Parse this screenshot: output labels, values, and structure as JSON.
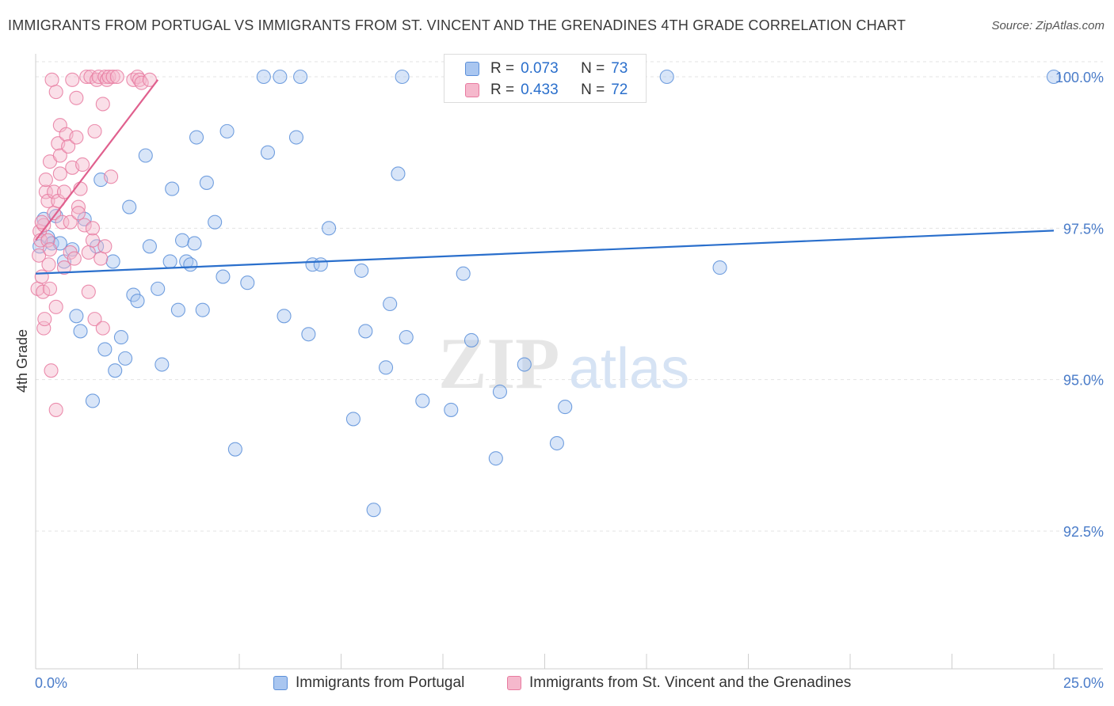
{
  "title": "IMMIGRANTS FROM PORTUGAL VS IMMIGRANTS FROM ST. VINCENT AND THE GRENADINES 4TH GRADE CORRELATION CHART",
  "source": "Source: ZipAtlas.com",
  "watermark": {
    "zip": "ZIP",
    "atlas": "atlas"
  },
  "colors": {
    "blue": "#5b8fd9",
    "blue_fill": "#a9c6f0",
    "blue_line": "#2a6fcc",
    "pink": "#e87aa0",
    "pink_fill": "#f5b8cc",
    "pink_line": "#e0608e",
    "axis_text": "#4a7cc9"
  },
  "legend_box": {
    "r_label": "R =",
    "n_label": "N =",
    "rows": [
      {
        "r": "0.073",
        "n": "73"
      },
      {
        "r": "0.433",
        "n": "72"
      }
    ]
  },
  "chart_data": {
    "type": "scatter",
    "title": "IMMIGRANTS FROM PORTUGAL VS IMMIGRANTS FROM ST. VINCENT AND THE GRENADINES 4TH GRADE CORRELATION CHART",
    "xlabel": "",
    "ylabel": "4th Grade",
    "x_tick_labels": [
      "0.0%",
      "25.0%"
    ],
    "y_tick_labels": [
      "100.0%",
      "97.5%",
      "95.0%",
      "92.5%"
    ],
    "y_ticks": [
      100.0,
      97.5,
      95.0,
      92.5
    ],
    "xlim": [
      0,
      25
    ],
    "ylim": [
      90.0,
      100.25
    ],
    "grid": true,
    "legend_position": "bottom",
    "series": [
      {
        "name": "Immigrants from Portugal",
        "color": "#5b8fd9",
        "trend": {
          "x0": 0.0,
          "y0": 96.75,
          "x1": 25.0,
          "y1": 97.46
        },
        "points": [
          [
            0.1,
            97.2
          ],
          [
            0.2,
            97.65
          ],
          [
            0.3,
            97.35
          ],
          [
            0.4,
            97.25
          ],
          [
            0.5,
            97.7
          ],
          [
            0.6,
            97.25
          ],
          [
            0.7,
            96.95
          ],
          [
            0.9,
            97.15
          ],
          [
            1.0,
            96.05
          ],
          [
            1.1,
            95.8
          ],
          [
            1.2,
            97.65
          ],
          [
            1.4,
            94.65
          ],
          [
            1.5,
            97.2
          ],
          [
            1.6,
            98.3
          ],
          [
            1.7,
            95.5
          ],
          [
            1.9,
            96.95
          ],
          [
            1.95,
            95.15
          ],
          [
            2.1,
            95.7
          ],
          [
            2.2,
            95.35
          ],
          [
            2.3,
            97.85
          ],
          [
            2.4,
            96.4
          ],
          [
            2.5,
            96.3
          ],
          [
            2.7,
            98.7
          ],
          [
            2.8,
            97.2
          ],
          [
            3.0,
            96.5
          ],
          [
            3.1,
            95.25
          ],
          [
            3.3,
            96.95
          ],
          [
            3.35,
            98.15
          ],
          [
            3.5,
            96.15
          ],
          [
            3.6,
            97.3
          ],
          [
            3.7,
            96.95
          ],
          [
            3.9,
            97.25
          ],
          [
            3.95,
            99.0
          ],
          [
            4.1,
            96.15
          ],
          [
            4.2,
            98.25
          ],
          [
            4.4,
            97.6
          ],
          [
            4.6,
            96.7
          ],
          [
            4.7,
            99.1
          ],
          [
            4.9,
            93.85
          ],
          [
            5.2,
            96.6
          ],
          [
            5.6,
            100.0
          ],
          [
            5.7,
            98.75
          ],
          [
            6.0,
            100.0
          ],
          [
            6.1,
            96.05
          ],
          [
            6.4,
            99.0
          ],
          [
            6.5,
            100.0
          ],
          [
            6.7,
            95.75
          ],
          [
            6.8,
            96.9
          ],
          [
            7.0,
            96.9
          ],
          [
            7.2,
            97.5
          ],
          [
            7.8,
            94.35
          ],
          [
            8.0,
            96.8
          ],
          [
            8.1,
            95.8
          ],
          [
            8.3,
            92.85
          ],
          [
            8.6,
            95.2
          ],
          [
            8.7,
            96.25
          ],
          [
            8.9,
            98.4
          ],
          [
            9.0,
            100.0
          ],
          [
            9.1,
            95.7
          ],
          [
            9.5,
            94.65
          ],
          [
            10.2,
            94.5
          ],
          [
            10.5,
            96.75
          ],
          [
            10.7,
            95.65
          ],
          [
            11.3,
            93.7
          ],
          [
            11.4,
            94.8
          ],
          [
            12.0,
            95.25
          ],
          [
            13.0,
            94.55
          ],
          [
            12.8,
            93.95
          ],
          [
            14.1,
            100.0
          ],
          [
            15.5,
            100.0
          ],
          [
            16.8,
            96.85
          ],
          [
            25.0,
            100.0
          ],
          [
            3.8,
            96.9
          ]
        ]
      },
      {
        "name": "Immigrants from St. Vincent and the Grenadines",
        "color": "#e87aa0",
        "trend": {
          "x0": 0.0,
          "y0": 97.3,
          "x1": 3.0,
          "y1": 99.95
        },
        "points": [
          [
            0.05,
            96.5
          ],
          [
            0.08,
            97.05
          ],
          [
            0.1,
            97.45
          ],
          [
            0.12,
            97.3
          ],
          [
            0.15,
            96.7
          ],
          [
            0.18,
            96.45
          ],
          [
            0.2,
            97.55
          ],
          [
            0.2,
            95.85
          ],
          [
            0.22,
            96.0
          ],
          [
            0.25,
            98.1
          ],
          [
            0.25,
            98.3
          ],
          [
            0.3,
            97.95
          ],
          [
            0.3,
            97.3
          ],
          [
            0.32,
            96.9
          ],
          [
            0.35,
            96.5
          ],
          [
            0.35,
            98.6
          ],
          [
            0.38,
            95.15
          ],
          [
            0.4,
            99.95
          ],
          [
            0.45,
            97.75
          ],
          [
            0.45,
            98.1
          ],
          [
            0.5,
            96.2
          ],
          [
            0.5,
            94.5
          ],
          [
            0.5,
            99.75
          ],
          [
            0.55,
            98.9
          ],
          [
            0.55,
            97.95
          ],
          [
            0.6,
            99.2
          ],
          [
            0.6,
            98.4
          ],
          [
            0.6,
            98.7
          ],
          [
            0.65,
            97.6
          ],
          [
            0.7,
            98.1
          ],
          [
            0.7,
            96.85
          ],
          [
            0.75,
            99.05
          ],
          [
            0.8,
            98.85
          ],
          [
            0.85,
            97.1
          ],
          [
            0.85,
            97.6
          ],
          [
            0.9,
            99.95
          ],
          [
            0.9,
            98.5
          ],
          [
            0.95,
            97.0
          ],
          [
            1.0,
            99.0
          ],
          [
            1.0,
            99.65
          ],
          [
            1.05,
            97.85
          ],
          [
            1.05,
            97.75
          ],
          [
            1.1,
            98.15
          ],
          [
            1.15,
            98.55
          ],
          [
            1.2,
            97.55
          ],
          [
            1.25,
            100.0
          ],
          [
            1.3,
            96.45
          ],
          [
            1.3,
            97.1
          ],
          [
            1.35,
            100.0
          ],
          [
            1.4,
            97.3
          ],
          [
            1.4,
            97.5
          ],
          [
            1.45,
            99.1
          ],
          [
            1.45,
            96.0
          ],
          [
            1.5,
            99.95
          ],
          [
            1.55,
            100.0
          ],
          [
            1.6,
            97.0
          ],
          [
            1.65,
            95.85
          ],
          [
            1.65,
            99.55
          ],
          [
            1.7,
            97.2
          ],
          [
            1.7,
            100.0
          ],
          [
            1.75,
            99.95
          ],
          [
            1.8,
            100.0
          ],
          [
            1.85,
            98.35
          ],
          [
            1.9,
            100.0
          ],
          [
            2.0,
            100.0
          ],
          [
            2.4,
            99.95
          ],
          [
            2.5,
            100.0
          ],
          [
            2.55,
            99.95
          ],
          [
            2.6,
            99.9
          ],
          [
            2.8,
            99.95
          ],
          [
            0.35,
            97.15
          ],
          [
            0.15,
            97.6
          ]
        ]
      }
    ]
  }
}
